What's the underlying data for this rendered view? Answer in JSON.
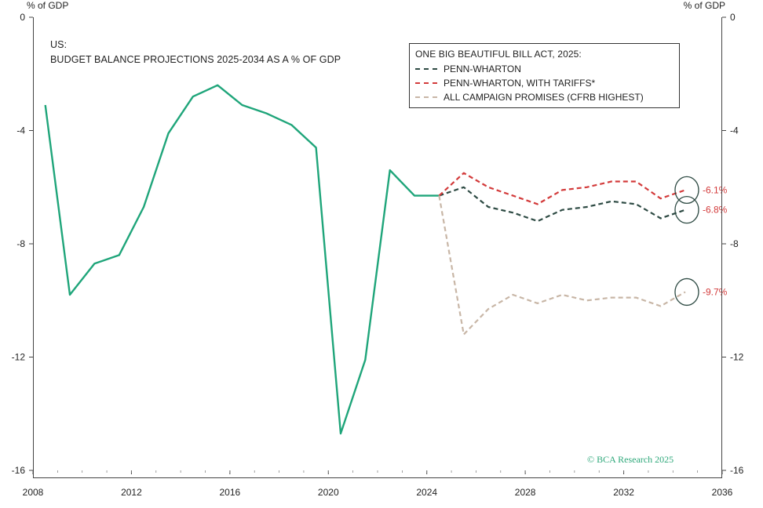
{
  "colors": {
    "actual": "#1fa57a",
    "penn_wharton": "#2d4a43",
    "penn_wharton_tariffs": "#d33b3b",
    "campaign": "#c8b6a6",
    "copyright": "#2ea87a",
    "axis": "#333333"
  },
  "axis_unit_left": "% of GDP",
  "axis_unit_right": "% of GDP",
  "title": {
    "line1": "US:",
    "line2": "BUDGET BALANCE PROJECTIONS 2025-2034 AS A % OF GDP"
  },
  "legend": {
    "title": "ONE BIG BEAUTIFUL BILL ACT, 2025:",
    "items": [
      {
        "label": "PENN-WHARTON",
        "color": "#2d4a43"
      },
      {
        "label": "PENN-WHARTON, WITH TARIFFS*",
        "color": "#d33b3b"
      },
      {
        "label": "ALL CAMPAIGN PROMISES (CFRB HIGHEST)",
        "color": "#c8b6a6"
      }
    ]
  },
  "copyright": "© BCA Research 2025",
  "chart_data": {
    "type": "line",
    "title": "US: BUDGET BALANCE PROJECTIONS 2025-2034 AS A % OF GDP",
    "ylabel": "% of GDP",
    "xlim": [
      2008,
      2036
    ],
    "ylim": [
      -16,
      0
    ],
    "x_ticks": [
      "2008",
      "2012",
      "2016",
      "2020",
      "2024",
      "2028",
      "2032",
      "2036"
    ],
    "y_ticks": [
      "0",
      "-4",
      "-8",
      "-12",
      "-16"
    ],
    "y_tick_values": [
      0,
      -4,
      -8,
      -12,
      -16
    ],
    "x_tick_values": [
      2008,
      2012,
      2016,
      2020,
      2024,
      2028,
      2032,
      2036
    ],
    "series": [
      {
        "name": "Actual",
        "style": "solid",
        "color": "#1fa57a",
        "x": [
          2008.5,
          2009.5,
          2010.5,
          2011.5,
          2012.5,
          2013.5,
          2014.5,
          2015.5,
          2016.5,
          2017.5,
          2018.5,
          2019.5,
          2020.5,
          2021.5,
          2022.5,
          2023.5,
          2024.5
        ],
        "values": [
          -3.1,
          -9.8,
          -8.7,
          -8.4,
          -6.7,
          -4.1,
          -2.8,
          -2.4,
          -3.1,
          -3.4,
          -3.8,
          -4.6,
          -14.7,
          -12.1,
          -5.4,
          -6.3,
          -6.3
        ]
      },
      {
        "name": "PENN-WHARTON",
        "style": "dashed",
        "color": "#2d4a43",
        "x": [
          2024.5,
          2025.5,
          2026.5,
          2027.5,
          2028.5,
          2029.5,
          2030.5,
          2031.5,
          2032.5,
          2033.5,
          2034.5
        ],
        "values": [
          -6.3,
          -6.0,
          -6.7,
          -6.9,
          -7.2,
          -6.8,
          -6.7,
          -6.5,
          -6.6,
          -7.1,
          -6.8
        ]
      },
      {
        "name": "PENN-WHARTON, WITH TARIFFS*",
        "style": "dashed",
        "color": "#d33b3b",
        "x": [
          2024.5,
          2025.5,
          2026.5,
          2027.5,
          2028.5,
          2029.5,
          2030.5,
          2031.5,
          2032.5,
          2033.5,
          2034.5
        ],
        "values": [
          -6.3,
          -5.5,
          -6.0,
          -6.3,
          -6.6,
          -6.1,
          -6.0,
          -5.8,
          -5.8,
          -6.4,
          -6.1
        ]
      },
      {
        "name": "ALL CAMPAIGN PROMISES (CFRB HIGHEST)",
        "style": "dashed",
        "color": "#c8b6a6",
        "x": [
          2024.5,
          2025.5,
          2026.5,
          2027.5,
          2028.5,
          2029.5,
          2030.5,
          2031.5,
          2032.5,
          2033.5,
          2034.5
        ],
        "values": [
          -6.3,
          -11.2,
          -10.3,
          -9.8,
          -10.1,
          -9.8,
          -10.0,
          -9.9,
          -9.9,
          -10.2,
          -9.7
        ]
      }
    ],
    "annotations": [
      {
        "label": "-6.1%",
        "x": 2034.5,
        "y": -6.1,
        "color": "#d33b3b"
      },
      {
        "label": "-6.8%",
        "x": 2034.5,
        "y": -6.8,
        "color": "#d33b3b"
      },
      {
        "label": "-9.7%",
        "x": 2034.5,
        "y": -9.7,
        "color": "#d33b3b"
      }
    ]
  }
}
